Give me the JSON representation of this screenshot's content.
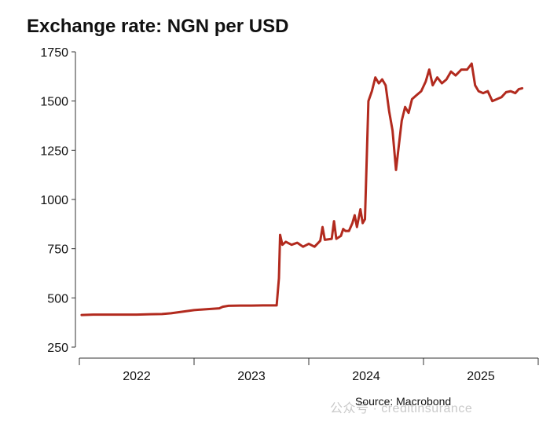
{
  "chart_data": {
    "type": "line",
    "title": "Exchange rate: NGN per USD",
    "source": "Source: Macrobond",
    "watermark": "公众号 · creditinsurance",
    "xlabel": "",
    "ylabel": "",
    "ylim": [
      250,
      1750
    ],
    "xlim": [
      2021.5,
      2025.5
    ],
    "yticks": [
      250,
      500,
      750,
      1000,
      1250,
      1500,
      1750
    ],
    "xticks_major": [
      2021.5,
      2022.5,
      2023.5,
      2024.5,
      2025.5
    ],
    "xtick_labels": [
      {
        "label": "2022",
        "x": 2022.0
      },
      {
        "label": "2023",
        "x": 2023.0
      },
      {
        "label": "2024",
        "x": 2024.0
      },
      {
        "label": "2025",
        "x": 2025.0
      }
    ],
    "grid": false,
    "line_color": "#b22a1e",
    "series": [
      {
        "name": "",
        "points": [
          [
            2021.52,
            413
          ],
          [
            2021.62,
            415
          ],
          [
            2021.75,
            415
          ],
          [
            2021.9,
            415
          ],
          [
            2022.0,
            415
          ],
          [
            2022.12,
            417
          ],
          [
            2022.22,
            418
          ],
          [
            2022.3,
            422
          ],
          [
            2022.4,
            430
          ],
          [
            2022.5,
            438
          ],
          [
            2022.62,
            443
          ],
          [
            2022.72,
            447
          ],
          [
            2022.75,
            455
          ],
          [
            2022.8,
            460
          ],
          [
            2022.9,
            461
          ],
          [
            2023.0,
            461
          ],
          [
            2023.1,
            462
          ],
          [
            2023.22,
            462
          ],
          [
            2023.24,
            600
          ],
          [
            2023.25,
            820
          ],
          [
            2023.27,
            770
          ],
          [
            2023.3,
            785
          ],
          [
            2023.35,
            770
          ],
          [
            2023.4,
            780
          ],
          [
            2023.45,
            760
          ],
          [
            2023.5,
            775
          ],
          [
            2023.55,
            760
          ],
          [
            2023.6,
            790
          ],
          [
            2023.62,
            860
          ],
          [
            2023.64,
            795
          ],
          [
            2023.7,
            800
          ],
          [
            2023.72,
            890
          ],
          [
            2023.74,
            800
          ],
          [
            2023.78,
            815
          ],
          [
            2023.8,
            850
          ],
          [
            2023.82,
            840
          ],
          [
            2023.85,
            840
          ],
          [
            2023.88,
            880
          ],
          [
            2023.9,
            920
          ],
          [
            2023.92,
            860
          ],
          [
            2023.95,
            950
          ],
          [
            2023.97,
            880
          ],
          [
            2023.99,
            900
          ],
          [
            2024.02,
            1500
          ],
          [
            2024.05,
            1550
          ],
          [
            2024.08,
            1620
          ],
          [
            2024.11,
            1590
          ],
          [
            2024.14,
            1610
          ],
          [
            2024.17,
            1580
          ],
          [
            2024.2,
            1450
          ],
          [
            2024.23,
            1350
          ],
          [
            2024.26,
            1150
          ],
          [
            2024.28,
            1250
          ],
          [
            2024.31,
            1400
          ],
          [
            2024.34,
            1470
          ],
          [
            2024.37,
            1440
          ],
          [
            2024.4,
            1510
          ],
          [
            2024.44,
            1530
          ],
          [
            2024.48,
            1550
          ],
          [
            2024.52,
            1600
          ],
          [
            2024.55,
            1660
          ],
          [
            2024.58,
            1580
          ],
          [
            2024.62,
            1620
          ],
          [
            2024.66,
            1590
          ],
          [
            2024.7,
            1610
          ],
          [
            2024.74,
            1650
          ],
          [
            2024.78,
            1630
          ],
          [
            2024.83,
            1660
          ],
          [
            2024.88,
            1660
          ],
          [
            2024.92,
            1690
          ],
          [
            2024.95,
            1580
          ],
          [
            2024.98,
            1550
          ],
          [
            2025.02,
            1540
          ],
          [
            2025.06,
            1550
          ],
          [
            2025.1,
            1500
          ],
          [
            2025.14,
            1510
          ],
          [
            2025.18,
            1520
          ],
          [
            2025.22,
            1545
          ],
          [
            2025.26,
            1550
          ],
          [
            2025.3,
            1540
          ],
          [
            2025.33,
            1560
          ],
          [
            2025.36,
            1565
          ]
        ]
      }
    ]
  }
}
